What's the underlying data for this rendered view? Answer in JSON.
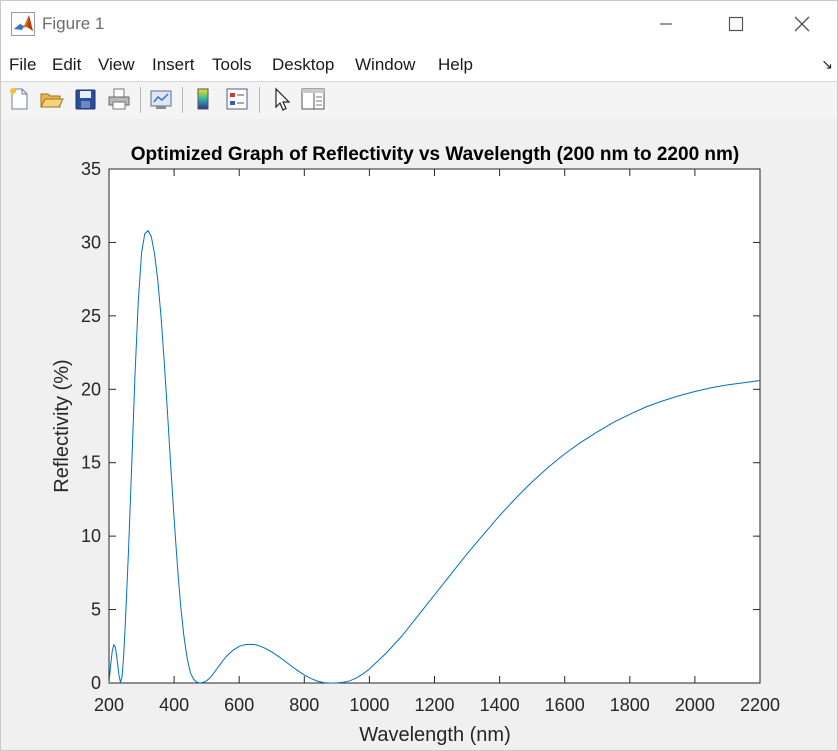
{
  "window": {
    "title": "Figure 1",
    "app_icon": "matlab-logo-icon"
  },
  "window_controls": [
    "minimize-icon",
    "maximize-icon",
    "close-icon"
  ],
  "menu": [
    "File",
    "Edit",
    "View",
    "Insert",
    "Tools",
    "Desktop",
    "Window",
    "Help"
  ],
  "menu_dock_icon": "dock-arrow-icon",
  "menu_dock_glyph": "↘",
  "toolbar": [
    "new-figure-icon",
    "open-file-icon",
    "save-icon",
    "print-icon",
    "link-plot-icon",
    "insert-colorbar-icon",
    "insert-legend-icon",
    "edit-plot-pointer-icon",
    "property-inspector-icon"
  ],
  "chart_data": {
    "type": "line",
    "title": "Optimized Graph of Reflectivity vs Wavelength (200 nm to 2200 nm)",
    "xlabel": "Wavelength (nm)",
    "ylabel": "Reflectivity (%)",
    "xlim": [
      200,
      2200
    ],
    "ylim": [
      0,
      35
    ],
    "xticks": [
      200,
      400,
      600,
      800,
      1000,
      1200,
      1400,
      1600,
      1800,
      2000,
      2200
    ],
    "yticks": [
      0,
      5,
      10,
      15,
      20,
      25,
      30,
      35
    ],
    "grid": false,
    "line_color": "#0072bd",
    "series": [
      {
        "x": [
          200,
          205,
          210,
          215,
          220,
          225,
          230,
          235,
          240,
          245,
          250,
          260,
          270,
          280,
          290,
          300,
          310,
          320,
          330,
          340,
          350,
          360,
          370,
          380,
          390,
          400,
          410,
          420,
          430,
          440,
          450,
          460,
          470,
          480,
          490,
          500,
          510,
          520,
          530,
          540,
          550,
          560,
          580,
          600,
          620,
          640,
          650,
          660,
          680,
          700,
          720,
          740,
          760,
          780,
          800,
          820,
          840,
          860,
          880,
          900,
          920,
          940,
          960,
          980,
          1000,
          1050,
          1100,
          1150,
          1200,
          1250,
          1300,
          1350,
          1400,
          1450,
          1500,
          1550,
          1600,
          1650,
          1700,
          1750,
          1800,
          1850,
          1900,
          1950,
          2000,
          2050,
          2100,
          2150,
          2200
        ],
        "y": [
          0,
          1.2,
          2.2,
          2.6,
          2.4,
          1.6,
          0.6,
          0.05,
          0.4,
          1.8,
          4.0,
          9.0,
          15.0,
          21.0,
          26.0,
          29.3,
          30.6,
          30.8,
          30.4,
          29.2,
          27.4,
          24.9,
          21.8,
          18.3,
          14.7,
          11.2,
          8.0,
          5.3,
          3.2,
          1.7,
          0.7,
          0.25,
          0.05,
          0,
          0.05,
          0.15,
          0.35,
          0.62,
          0.92,
          1.22,
          1.52,
          1.8,
          2.22,
          2.5,
          2.62,
          2.63,
          2.6,
          2.54,
          2.36,
          2.12,
          1.82,
          1.5,
          1.16,
          0.84,
          0.55,
          0.31,
          0.13,
          0.03,
          0,
          0.01,
          0.05,
          0.15,
          0.35,
          0.62,
          0.95,
          2.0,
          3.2,
          4.6,
          6.0,
          7.4,
          8.8,
          10.1,
          11.4,
          12.6,
          13.7,
          14.7,
          15.6,
          16.4,
          17.1,
          17.75,
          18.3,
          18.8,
          19.2,
          19.55,
          19.85,
          20.1,
          20.3,
          20.45,
          20.6
        ]
      }
    ]
  }
}
